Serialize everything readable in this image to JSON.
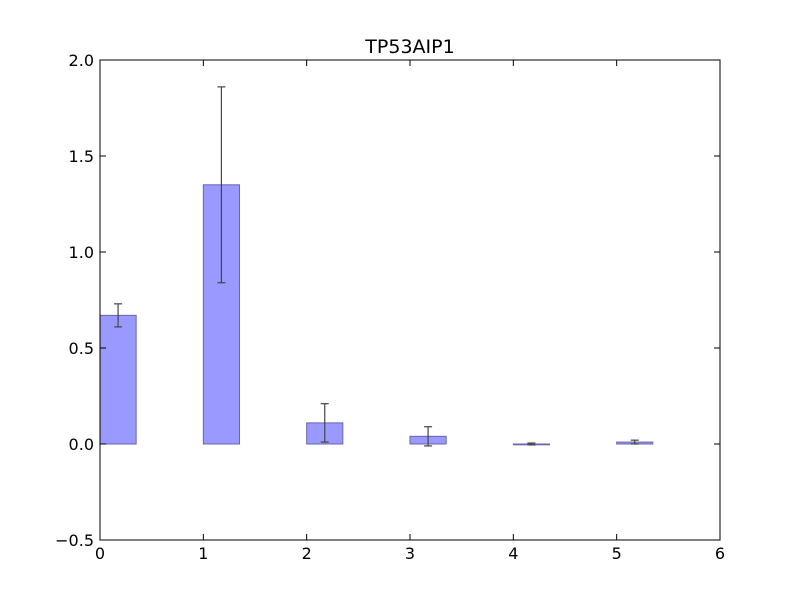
{
  "chart_data": {
    "type": "bar",
    "title": "TP53AIP1",
    "xlabel": "",
    "ylabel": "",
    "xlim": [
      0,
      6
    ],
    "ylim": [
      -0.5,
      2.0
    ],
    "bar_width": 0.35,
    "x": [
      0,
      1,
      2,
      3,
      4,
      5
    ],
    "values": [
      0.67,
      1.35,
      0.11,
      0.04,
      0.0,
      0.01
    ],
    "errors": [
      0.06,
      0.51,
      0.1,
      0.05,
      0.005,
      0.01
    ],
    "x_ticks": [
      {
        "value": 0,
        "label": "0"
      },
      {
        "value": 1,
        "label": "1"
      },
      {
        "value": 2,
        "label": "2"
      },
      {
        "value": 3,
        "label": "3"
      },
      {
        "value": 4,
        "label": "4"
      },
      {
        "value": 5,
        "label": "5"
      },
      {
        "value": 6,
        "label": "6"
      }
    ],
    "y_ticks": [
      {
        "value": -0.5,
        "label": "−0.5"
      },
      {
        "value": 0.0,
        "label": "0.0"
      },
      {
        "value": 0.5,
        "label": "0.5"
      },
      {
        "value": 1.0,
        "label": "1.0"
      },
      {
        "value": 1.5,
        "label": "1.5"
      },
      {
        "value": 2.0,
        "label": "2.0"
      }
    ],
    "grid": false,
    "bar_color": "#9999ff",
    "bar_edge_color": "#6666aa",
    "error_color": "#444444"
  }
}
